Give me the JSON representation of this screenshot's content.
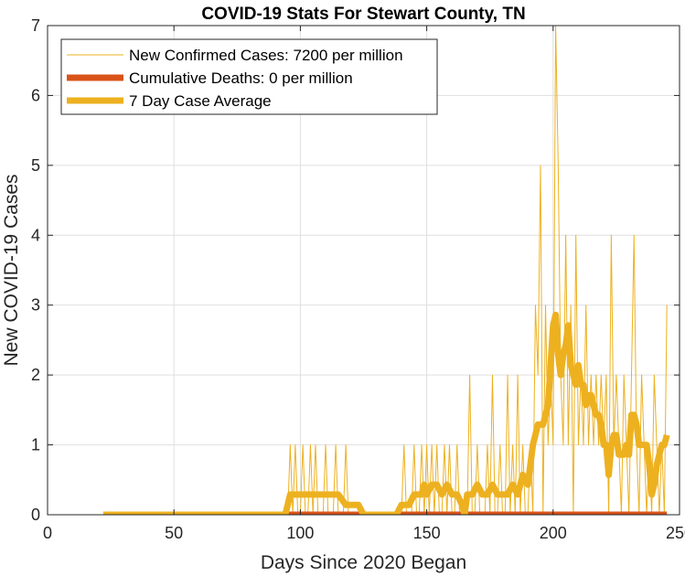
{
  "chart_data": {
    "type": "line",
    "title": "COVID-19 Stats For Stewart County, TN",
    "xlabel": "Days Since 2020 Began",
    "ylabel": "New COVID-19 Cases",
    "xlim": [
      0,
      250
    ],
    "ylim": [
      0,
      7
    ],
    "xticks": [
      0,
      50,
      100,
      150,
      200,
      250
    ],
    "yticks": [
      0,
      1,
      2,
      3,
      4,
      5,
      6,
      7
    ],
    "grid": true,
    "legend_position": "top-left",
    "series": [
      {
        "name": "New Confirmed Cases: 7200 per million",
        "color": "#edb120",
        "style": "thin",
        "points": [
          [
            22,
            0
          ],
          [
            95,
            0
          ],
          [
            96,
            1
          ],
          [
            97,
            0
          ],
          [
            98,
            1
          ],
          [
            99,
            0
          ],
          [
            100,
            0
          ],
          [
            101,
            1
          ],
          [
            102,
            0
          ],
          [
            103,
            0
          ],
          [
            104,
            1
          ],
          [
            105,
            0
          ],
          [
            106,
            1
          ],
          [
            107,
            0
          ],
          [
            108,
            0
          ],
          [
            109,
            0
          ],
          [
            110,
            1
          ],
          [
            111,
            0
          ],
          [
            112,
            0
          ],
          [
            113,
            0
          ],
          [
            114,
            1
          ],
          [
            115,
            0
          ],
          [
            116,
            0
          ],
          [
            117,
            0
          ],
          [
            118,
            1
          ],
          [
            119,
            0
          ],
          [
            120,
            0
          ],
          [
            121,
            0
          ],
          [
            122,
            0
          ],
          [
            123,
            0
          ],
          [
            124,
            0
          ],
          [
            125,
            0
          ],
          [
            140,
            0
          ],
          [
            141,
            1
          ],
          [
            142,
            0
          ],
          [
            143,
            0
          ],
          [
            144,
            0
          ],
          [
            145,
            1
          ],
          [
            146,
            0
          ],
          [
            147,
            0
          ],
          [
            148,
            1
          ],
          [
            149,
            0
          ],
          [
            150,
            1
          ],
          [
            151,
            0
          ],
          [
            152,
            1
          ],
          [
            153,
            0
          ],
          [
            154,
            1
          ],
          [
            155,
            0
          ],
          [
            156,
            0
          ],
          [
            157,
            1
          ],
          [
            158,
            0
          ],
          [
            159,
            1
          ],
          [
            160,
            0
          ],
          [
            161,
            0
          ],
          [
            162,
            1
          ],
          [
            163,
            0
          ],
          [
            164,
            0
          ],
          [
            165,
            0
          ],
          [
            166,
            0
          ],
          [
            167,
            2
          ],
          [
            168,
            0
          ],
          [
            169,
            0
          ],
          [
            170,
            1
          ],
          [
            171,
            0
          ],
          [
            172,
            0
          ],
          [
            173,
            0
          ],
          [
            174,
            1
          ],
          [
            175,
            0
          ],
          [
            176,
            2
          ],
          [
            177,
            0
          ],
          [
            178,
            0
          ],
          [
            179,
            1
          ],
          [
            180,
            0
          ],
          [
            181,
            0
          ],
          [
            182,
            2
          ],
          [
            183,
            0
          ],
          [
            184,
            1
          ],
          [
            185,
            0
          ],
          [
            186,
            2
          ],
          [
            187,
            0
          ],
          [
            188,
            1
          ],
          [
            189,
            0
          ],
          [
            190,
            0
          ],
          [
            191,
            1
          ],
          [
            192,
            0
          ],
          [
            193,
            3
          ],
          [
            194,
            2
          ],
          [
            195,
            5
          ],
          [
            196,
            0
          ],
          [
            197,
            3
          ],
          [
            198,
            1
          ],
          [
            199,
            2
          ],
          [
            200,
            1
          ],
          [
            201,
            7
          ],
          [
            202,
            5
          ],
          [
            203,
            2
          ],
          [
            204,
            1
          ],
          [
            205,
            4
          ],
          [
            206,
            1
          ],
          [
            207,
            3
          ],
          [
            208,
            0
          ],
          [
            209,
            4
          ],
          [
            210,
            1
          ],
          [
            211,
            2
          ],
          [
            212,
            1
          ],
          [
            213,
            3
          ],
          [
            214,
            1
          ],
          [
            215,
            2
          ],
          [
            216,
            1
          ],
          [
            217,
            2
          ],
          [
            218,
            1
          ],
          [
            219,
            2
          ],
          [
            220,
            1
          ],
          [
            221,
            2
          ],
          [
            222,
            0
          ],
          [
            223,
            4
          ],
          [
            224,
            1
          ],
          [
            225,
            2
          ],
          [
            226,
            1
          ],
          [
            227,
            0
          ],
          [
            228,
            2
          ],
          [
            229,
            1
          ],
          [
            230,
            0
          ],
          [
            231,
            2
          ],
          [
            232,
            4
          ],
          [
            233,
            1
          ],
          [
            234,
            0
          ],
          [
            235,
            2
          ],
          [
            236,
            1
          ],
          [
            237,
            0
          ],
          [
            238,
            1
          ],
          [
            239,
            0
          ],
          [
            240,
            2
          ],
          [
            241,
            1
          ],
          [
            242,
            0
          ],
          [
            243,
            1
          ],
          [
            244,
            0
          ],
          [
            245,
            3
          ]
        ]
      },
      {
        "name": "Cumulative Deaths: 0 per million",
        "color": "#d95319",
        "style": "thick",
        "points": [
          [
            95,
            0
          ],
          [
            245,
            0
          ]
        ]
      },
      {
        "name": "7 Day Case Average",
        "color": "#edb120",
        "style": "thick",
        "points": [
          [
            22,
            0
          ],
          [
            94,
            0
          ],
          [
            95,
            0.14
          ],
          [
            96,
            0.29
          ],
          [
            103,
            0.29
          ],
          [
            104,
            0.29
          ],
          [
            110,
            0.29
          ],
          [
            115,
            0.29
          ],
          [
            118,
            0.14
          ],
          [
            123,
            0.14
          ],
          [
            125,
            0
          ],
          [
            138,
            0
          ],
          [
            140,
            0.14
          ],
          [
            143,
            0.14
          ],
          [
            145,
            0.29
          ],
          [
            148,
            0.29
          ],
          [
            149,
            0.43
          ],
          [
            150,
            0.29
          ],
          [
            152,
            0.43
          ],
          [
            154,
            0.43
          ],
          [
            156,
            0.29
          ],
          [
            158,
            0.43
          ],
          [
            160,
            0.29
          ],
          [
            162,
            0.29
          ],
          [
            164,
            0.14
          ],
          [
            165,
            0
          ],
          [
            166,
            0.29
          ],
          [
            168,
            0.29
          ],
          [
            170,
            0.43
          ],
          [
            172,
            0.29
          ],
          [
            174,
            0.29
          ],
          [
            176,
            0.43
          ],
          [
            178,
            0.29
          ],
          [
            182,
            0.29
          ],
          [
            184,
            0.43
          ],
          [
            186,
            0.29
          ],
          [
            188,
            0.57
          ],
          [
            190,
            0.43
          ],
          [
            192,
            1
          ],
          [
            194,
            1.29
          ],
          [
            196,
            1.29
          ],
          [
            198,
            1.57
          ],
          [
            200,
            2.71
          ],
          [
            201,
            2.86
          ],
          [
            202,
            2.29
          ],
          [
            203,
            2
          ],
          [
            204,
            2.29
          ],
          [
            205,
            2.43
          ],
          [
            206,
            2.71
          ],
          [
            207,
            2.14
          ],
          [
            208,
            2
          ],
          [
            209,
            1.86
          ],
          [
            210,
            2.14
          ],
          [
            211,
            1.86
          ],
          [
            212,
            1.86
          ],
          [
            213,
            1.57
          ],
          [
            214,
            1.71
          ],
          [
            215,
            1.71
          ],
          [
            216,
            1.57
          ],
          [
            217,
            1.43
          ],
          [
            218,
            1.43
          ],
          [
            219,
            1.29
          ],
          [
            220,
            1
          ],
          [
            221,
            1
          ],
          [
            222,
            0.57
          ],
          [
            223,
            1
          ],
          [
            224,
            1.14
          ],
          [
            225,
            1.14
          ],
          [
            226,
            0.86
          ],
          [
            227,
            0.86
          ],
          [
            228,
            0.86
          ],
          [
            229,
            1
          ],
          [
            230,
            0.86
          ],
          [
            231,
            1.43
          ],
          [
            232,
            1.43
          ],
          [
            233,
            1.29
          ],
          [
            234,
            1
          ],
          [
            235,
            1
          ],
          [
            236,
            1
          ],
          [
            237,
            1
          ],
          [
            238,
            0.71
          ],
          [
            239,
            0.29
          ],
          [
            240,
            0.43
          ],
          [
            241,
            0.71
          ],
          [
            242,
            0.86
          ],
          [
            243,
            1
          ],
          [
            244,
            1
          ],
          [
            245,
            1.14
          ]
        ]
      }
    ]
  }
}
